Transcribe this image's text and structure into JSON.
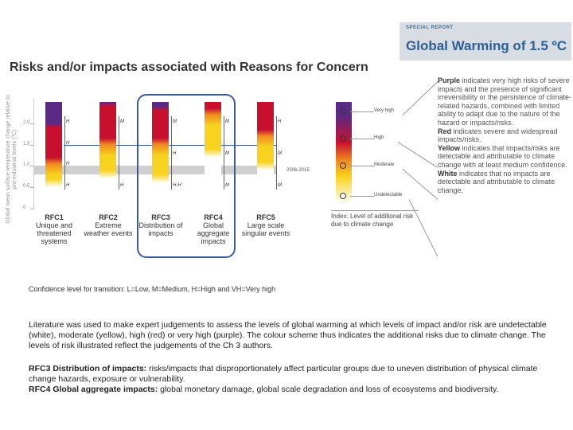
{
  "banner": {
    "kicker": "SPECIAL REPORT",
    "title": "Global Warming of 1.5 ºC"
  },
  "title": "Risks and/or impacts associated with Reasons for Concern",
  "colors": {
    "accent": "#3b5c9b",
    "undetectable": "#ffffff",
    "moderate": "#f7d21e",
    "high": "#c8102e",
    "very_high": "#5b2a86"
  },
  "chart_data": {
    "type": "bar",
    "ylabel": "Global mean surface temperature change relative to pre-industrial levels (ºC)",
    "yticks": [
      "0",
      "0.5",
      "1.0",
      "1.5",
      "2.0"
    ],
    "ylim": [
      0,
      2.5
    ],
    "reference_band": {
      "label": "2006-2015",
      "range": [
        0.8,
        1.0
      ]
    },
    "categories": [
      {
        "code": "RFC1",
        "name": "Unique and threatened systems",
        "levels": {
          "moderate_start": 0.5,
          "high_start": 1.05,
          "very_high_start": 1.9
        },
        "confidence": [
          "H",
          "H",
          "H",
          "H"
        ]
      },
      {
        "code": "RFC2",
        "name": "Extreme weather events",
        "levels": {
          "moderate_start": 0.7,
          "high_start": 1.5,
          "very_high_start": 2.4
        },
        "confidence": [
          "M",
          "H"
        ]
      },
      {
        "code": "RFC3",
        "name": "Distribution of impacts",
        "levels": {
          "moderate_start": 0.6,
          "high_start": 1.5,
          "very_high_start": 2.3
        },
        "confidence": [
          "M",
          "H",
          "H-H"
        ]
      },
      {
        "code": "RFC4",
        "name": "Global aggregate impacts",
        "levels": {
          "moderate_start": 1.2,
          "high_start": 2.2,
          "very_high_start": 3.0
        },
        "confidence": [
          "M",
          "M",
          "M"
        ]
      },
      {
        "code": "RFC5",
        "name": "Large scale singular events",
        "levels": {
          "moderate_start": 0.9,
          "high_start": 1.7,
          "very_high_start": 3.0
        },
        "confidence": [
          "H",
          "M",
          "M"
        ]
      }
    ],
    "index": {
      "levels": [
        "Very high",
        "High",
        "Moderate",
        "Undetectable"
      ],
      "caption": "Index: Level of additional risk due to climate change"
    }
  },
  "confidence_legend": "Confidence level for transition: L=Low, M=Medium, H=High and VH=Very high",
  "explanation": [
    {
      "label": "Purple",
      "text": "indicates very high risks of severe impacts and the presence of significant irreversibility or the persistence of climate-related hazards, combined with limited ability to adapt due to the nature of the hazard or impacts/risks."
    },
    {
      "label": "Red",
      "text": "indicates severe and widespread impacts/risks."
    },
    {
      "label": "Yellow",
      "text": "indicates that impacts/risks are detectable and attributable to climate change with at least medium confidence."
    },
    {
      "label": "White",
      "text": "indicates that no impacts are detectable and attributable to climate change."
    }
  ],
  "paragraph1": "Literature was used to make expert judgements to assess the levels of global warming at which levels of impact and/or risk are undetectable (white), moderate (yellow), high (red) or very high (purple). The colour scheme thus indicates the additional risks due to climate change. The levels of risk illustrated reflect the judgements of the Ch 3 authors.",
  "definitions": [
    {
      "term": "RFC3 Distribution of impacts:",
      "text": "risks/impacts that disproportionately affect particular groups due to uneven distribution of physical climate change hazards, exposure or vulnerability."
    },
    {
      "term": "RFC4 Global aggregate impacts:",
      "text": "global monetary damage, global scale degradation and loss of ecosystems and biodiversity."
    }
  ]
}
